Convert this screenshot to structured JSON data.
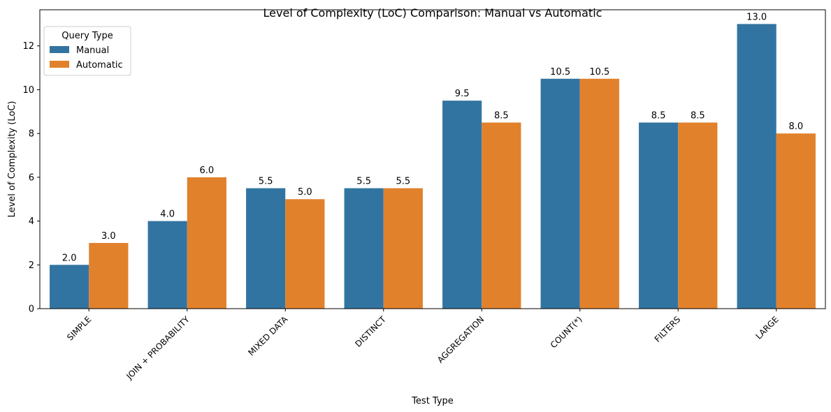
{
  "chart_data": {
    "type": "bar",
    "title": "Level of Complexity (LoC) Comparison: Manual vs Automatic",
    "xlabel": "Test Type",
    "ylabel": "Level of Complexity (LoC)",
    "categories": [
      "SIMPLE",
      "JOIN + PROBABILITY",
      "MIXED DATA",
      "DISTINCT",
      "AGGREGATION",
      "COUNT(*)",
      "FILTERS",
      "LARGE"
    ],
    "series": [
      {
        "name": "Manual",
        "color": "#3274a1",
        "values": [
          2.0,
          4.0,
          5.5,
          5.5,
          9.5,
          10.5,
          8.5,
          13.0
        ]
      },
      {
        "name": "Automatic",
        "color": "#e1812c",
        "values": [
          3.0,
          6.0,
          5.0,
          5.5,
          8.5,
          10.5,
          8.5,
          8.0
        ]
      }
    ],
    "ylim": [
      0,
      13.65
    ],
    "yticks": [
      0,
      2,
      4,
      6,
      8,
      10,
      12
    ],
    "data_labels": true,
    "grid": false,
    "legend": {
      "title": "Query Type",
      "placement": "top-left"
    }
  }
}
